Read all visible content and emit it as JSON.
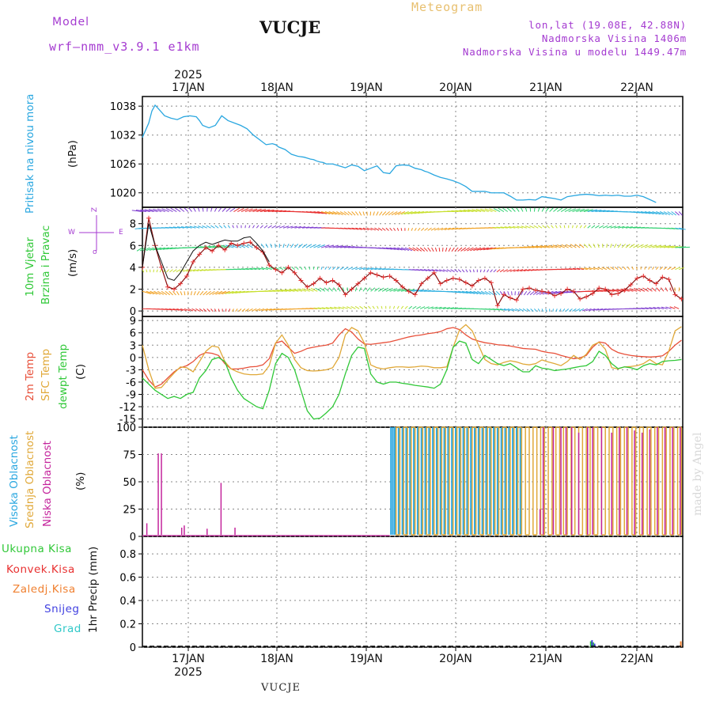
{
  "header": {
    "model_label": "Model",
    "model_value": "wrf—nmm_v3.9.1  e1km",
    "station": "VUCJE",
    "meteogram_label": "Meteogram",
    "lonlat": "lon,lat (19.08E, 42.88N)",
    "elevation": "Nadmorska Visina 1406m",
    "model_elevation": "Nadmorska Visina u modelu 1449.47m"
  },
  "footer_station": "VUCJE",
  "watermark": "made by Angel",
  "time_axis": {
    "year": "2025",
    "dates": [
      "17JAN",
      "18JAN",
      "19JAN",
      "20JAN",
      "21JAN",
      "22JAN"
    ]
  },
  "panels": {
    "pressure": {
      "title": "Pritisak na nivou mora",
      "unit": "(hPa)",
      "ticks": [
        "1038",
        "1032",
        "1026",
        "1020"
      ]
    },
    "wind": {
      "title_line1": "10m Vjetar",
      "title_line2": "Brzina i Pravac",
      "unit": "(m/s)",
      "ticks": [
        "8",
        "6",
        "4",
        "2",
        "0"
      ],
      "compass_n": "Z",
      "compass_w": "W",
      "compass_e": "E",
      "compass_s": "σ"
    },
    "temperature": {
      "label_2m": "2m Temp",
      "label_sfc": "SFC Temp",
      "label_dew": "dewpt Temp",
      "unit": "(C)",
      "ticks": [
        "9",
        "6",
        "3",
        "0",
        "-3",
        "-6",
        "-9",
        "-12",
        "-15"
      ]
    },
    "clouds": {
      "label_high": "Visoka Oblacnost",
      "label_mid": "Srednja Oblacnost",
      "label_low": "Niska Oblacnost",
      "unit": "(%)",
      "ticks": [
        "100",
        "75",
        "50",
        "25",
        "0"
      ]
    },
    "precip": {
      "legend": [
        "Ukupna Kisa",
        "Konvek.Kisa",
        "Zaledj.Kisa",
        "Snijeg",
        "Grad"
      ],
      "unit": "1hr Precip (mm)",
      "ticks": [
        "0.8",
        "0.6",
        "0.4",
        "0.2",
        "0"
      ]
    }
  },
  "colors": {
    "pressure": "#2aa7e0",
    "temp2m": "#e8503a",
    "sfc": "#e0a838",
    "dew": "#30c838",
    "cloud_high": "#2aa7e0",
    "cloud_mid": "#e0a838",
    "cloud_low": "#c4249c",
    "wind_speed": "#e83030",
    "label_purple": "#a43ad0",
    "ukupna": "#30c838",
    "konvek": "#e83030",
    "zaledj": "#f08030",
    "snijeg": "#4040e0",
    "grad": "#30c8c8"
  },
  "chart_data": [
    {
      "type": "line",
      "ylabel": "(hPa)",
      "ylim": [
        1017,
        1040
      ],
      "x_hours": [
        0,
        5,
        10,
        15,
        20,
        25,
        35,
        45,
        55,
        65,
        75,
        85,
        90,
        95,
        105,
        115,
        125,
        135,
        145,
        155,
        165,
        175,
        185,
        195,
        205,
        210,
        215,
        225,
        230,
        235,
        240,
        245,
        250,
        255,
        260,
        265,
        270,
        275,
        280,
        285,
        290,
        295,
        300,
        310,
        320,
        330,
        340,
        350,
        360,
        370,
        380,
        390,
        400,
        410,
        420,
        430,
        440,
        445,
        450,
        455,
        460,
        470,
        480,
        490,
        500,
        510,
        520,
        530,
        540,
        550,
        560,
        570,
        580,
        590,
        600,
        610,
        620,
        630,
        640,
        650,
        660,
        670,
        680,
        690,
        700,
        710,
        720,
        730,
        740,
        750,
        760,
        770,
        780,
        790,
        800,
        810,
        820,
        830,
        840,
        850
      ],
      "series": [
        {
          "values": [
            1031.5,
            1033,
            1034.5,
            1037,
            1038.2,
            1037.5,
            1036,
            1035.5,
            1035.2,
            1035.8,
            1036,
            1035.8,
            1035,
            1034,
            1033.5,
            1034,
            1036,
            1035,
            1034.5,
            1034,
            1033.3,
            1032,
            1031,
            1030,
            1030.2,
            1030,
            1029.5,
            1029,
            1028.5,
            1028,
            1027.8,
            1027.6,
            1027.5,
            1027.4,
            1027.2,
            1027,
            1026.9,
            1026.6,
            1026.4,
            1026.3,
            1026,
            1026,
            1026,
            1025.6,
            1025.2,
            1025.8,
            1025.5,
            1024.6,
            1025.1,
            1025.6,
            1024.2,
            1024,
            1025.6,
            1025.8,
            1025.7,
            1025.1,
            1024.8,
            1024.5,
            1024.3,
            1024,
            1023.7,
            1023.2,
            1022.9,
            1022.5,
            1022,
            1021.3,
            1020.3,
            1020.3,
            1020.3,
            1020,
            1020,
            1020,
            1019.3,
            1018.5,
            1018.5,
            1018.6,
            1018.5,
            1019.2,
            1019,
            1018.8,
            1018.5,
            1019.2,
            1019.4,
            1019.6,
            1019.7,
            1019.6,
            1019.4,
            1019.5,
            1019.4,
            1019.5,
            1019.3,
            1019.3,
            1019.5,
            1019.2,
            1018.6,
            1018
          ]
        }
      ]
    },
    {
      "type": "line",
      "ylabel": "(m/s)",
      "ylim": [
        -0.5,
        9.5
      ],
      "x_hours": [
        0,
        10,
        20,
        30,
        40,
        50,
        60,
        70,
        80,
        90,
        100,
        110,
        120,
        130,
        140,
        150,
        160,
        170,
        180,
        190,
        200,
        210,
        220,
        230,
        240,
        250,
        260,
        270,
        280,
        290,
        300,
        310,
        320,
        330,
        340,
        350,
        360,
        370,
        380,
        390,
        400,
        410,
        420,
        430,
        440,
        450,
        460,
        470,
        480,
        490,
        500,
        510,
        520,
        530,
        540,
        550,
        560,
        570,
        580,
        590,
        600,
        610,
        620,
        630,
        640,
        650,
        660,
        670,
        680,
        690,
        700,
        710,
        720,
        730,
        740,
        750,
        760,
        770,
        780,
        790,
        800,
        810,
        820,
        830,
        840,
        850
      ],
      "series": [
        {
          "values": [
            4,
            8.5,
            6,
            4,
            2.2,
            2,
            2.5,
            3.2,
            4.5,
            5.2,
            5.8,
            5.5,
            6,
            5.6,
            6.2,
            6,
            6.2,
            6.3,
            5.8,
            5.4,
            4.2,
            3.8,
            3.5,
            4,
            3.5,
            2.8,
            2.2,
            2.5,
            3,
            2.6,
            2.8,
            2.4,
            1.5,
            2,
            2.5,
            3,
            3.5,
            3.3,
            3.1,
            3.2,
            2.8,
            2.2,
            1.8,
            1.5,
            2.5,
            3,
            3.5,
            2.5,
            2.8,
            3,
            2.9,
            2.6,
            2.3,
            2.8,
            3,
            2.6,
            0.5,
            1.5,
            1.2,
            1,
            2,
            2.1,
            1.9,
            1.8,
            1.7,
            1.4,
            1.6,
            2,
            1.8,
            1.1,
            1.3,
            1.6,
            2.1,
            2,
            1.5,
            1.6,
            1.9,
            2.4,
            3,
            3.2,
            2.8,
            2.5,
            3.1,
            2.9,
            1.5,
            1.1
          ]
        },
        {
          "values": [
            4,
            8,
            6,
            4.5,
            3,
            2.8,
            3.5,
            4.5,
            5.5,
            6,
            6.3,
            6.1,
            6.3,
            6.5,
            6.4,
            6.4,
            6.7,
            6.8,
            6.2,
            5.5,
            4.5
          ]
        }
      ]
    },
    {
      "type": "line",
      "ylabel": "(C)",
      "ylim": [
        -17,
        10
      ],
      "x_hours": [
        0,
        10,
        20,
        30,
        40,
        50,
        60,
        70,
        80,
        90,
        100,
        110,
        120,
        130,
        140,
        150,
        160,
        170,
        180,
        190,
        200,
        210,
        220,
        230,
        240,
        250,
        260,
        270,
        280,
        290,
        300,
        310,
        320,
        330,
        340,
        350,
        360,
        370,
        380,
        390,
        400,
        410,
        420,
        430,
        440,
        450,
        460,
        470,
        480,
        490,
        500,
        510,
        520,
        530,
        540,
        550,
        560,
        570,
        580,
        590,
        600,
        610,
        620,
        630,
        640,
        650,
        660,
        670,
        680,
        690,
        700,
        710,
        720,
        730,
        740,
        750,
        760,
        770,
        780,
        790,
        800,
        810,
        820,
        830,
        840,
        850
      ],
      "series": [
        {
          "name": "2m Temp",
          "values": [
            -3,
            -5.5,
            -7.2,
            -6.5,
            -5,
            -3.5,
            -2.5,
            -2,
            -1,
            0.5,
            1.2,
            1,
            0.5,
            -1.5,
            -2.8,
            -2.8,
            -2.6,
            -2.3,
            -2.2,
            -1.8,
            -0.3,
            3.5,
            4,
            2.5,
            1,
            1.5,
            2.2,
            2.5,
            2.8,
            3,
            3.5,
            5.5,
            7,
            6.2,
            4.5,
            3.3,
            3.2,
            3.4,
            3.6,
            3.8,
            4.2,
            4.6,
            5,
            5.3,
            5.5,
            5.8,
            6,
            6.3,
            7,
            7.3,
            6.8,
            5.5,
            4.5,
            4,
            3.6,
            3.4,
            3.1,
            3,
            2.8,
            2.5,
            2.2,
            2.1,
            2,
            1.5,
            1.2,
            1,
            0.5,
            0.1,
            -0.3,
            -0.1,
            0.5,
            2.5,
            3.8,
            3.5,
            2,
            1.2,
            0.8,
            0.5,
            0.3,
            0.2,
            0.1,
            0.2,
            0.4,
            1.5,
            3,
            4.2
          ]
        },
        {
          "name": "SFC Temp",
          "values": [
            3,
            -3,
            -7.5,
            -7.3,
            -5.5,
            -3.8,
            -2.3,
            -2.5,
            -3.5,
            -1,
            1.5,
            2.8,
            2.5,
            -1,
            -2.8,
            -3.5,
            -4,
            -4.2,
            -4.2,
            -4,
            -2,
            3.5,
            5.5,
            3,
            -0.5,
            -2.5,
            -3.2,
            -3.3,
            -3.2,
            -3,
            -2.5,
            0,
            5.5,
            7.3,
            6.5,
            3.5,
            -1.8,
            -2.5,
            -2.8,
            -2.5,
            -2.3,
            -2.3,
            -2.4,
            -2.3,
            -2.1,
            -2.2,
            -2.5,
            -2.5,
            -2.3,
            2.5,
            6.7,
            8,
            6.5,
            3,
            -0.5,
            -1.5,
            -1.8,
            -1.2,
            -0.8,
            -1.1,
            -1.6,
            -1.8,
            -1.5,
            -0.6,
            -1.1,
            -1.5,
            -2,
            -1,
            0.5,
            -0.5,
            0.8,
            3,
            3.7,
            2,
            -2.5,
            -2.8,
            -2.3,
            -2.2,
            -2,
            -1.5,
            -0.5,
            -1.5,
            -1.8,
            1.5,
            6.5,
            7.5
          ]
        },
        {
          "name": "dewpt Temp",
          "values": [
            -5,
            -6.5,
            -8,
            -9,
            -10,
            -9.5,
            -10,
            -9,
            -8.5,
            -5,
            -3.2,
            -0.5,
            0,
            -1,
            -5,
            -8,
            -10,
            -11,
            -12,
            -12.5,
            -8,
            -1.5,
            1,
            0,
            -3,
            -8,
            -13,
            -15,
            -14.8,
            -13.5,
            -12,
            -9,
            -4,
            0.5,
            2.5,
            2.2,
            -4,
            -6,
            -6.5,
            -6,
            -6,
            -6.3,
            -6.5,
            -6.8,
            -7,
            -7.2,
            -7.5,
            -6.5,
            -3,
            2.5,
            4,
            3.5,
            -0.5,
            -1.5,
            0.5,
            -0.5,
            -1.5,
            -2,
            -1.5,
            -2.5,
            -3.5,
            -3.5,
            -2,
            -2.6,
            -2.8,
            -3.2,
            -3,
            -2.8,
            -2.5,
            -2.2,
            -2,
            -1,
            1.5,
            0.5,
            -1.5,
            -2.7,
            -2.3,
            -2.5,
            -3,
            -2,
            -1.5,
            -1.8,
            -1,
            -0.8,
            -0.7,
            -0.5
          ]
        }
      ]
    },
    {
      "type": "bar",
      "ylabel": "(%)",
      "ylim": [
        0,
        100
      ],
      "series": [
        {
          "name": "Niska Oblacnost",
          "x_hours": [
            7,
            25,
            30,
            62,
            66,
            102,
            124,
            146,
            627,
            632,
            648,
            660,
            668,
            677,
            688,
            702,
            710,
            724,
            740,
            752,
            764,
            776,
            788,
            800,
            812,
            824,
            836,
            848
          ],
          "values": [
            12,
            76,
            76,
            8,
            10,
            7,
            49,
            8,
            25,
            100,
            100,
            100,
            100,
            100,
            95,
            100,
            100,
            100,
            95,
            100,
            100,
            97,
            95,
            98,
            100,
            100,
            100,
            100
          ]
        },
        {
          "name": "Srednja Oblacnost",
          "x_hours": [
            400,
            412,
            424,
            436,
            448,
            460,
            472,
            484,
            496,
            508,
            520,
            532,
            544,
            556,
            568,
            580,
            592,
            604,
            616,
            628,
            640,
            652,
            664,
            676,
            688,
            700,
            712,
            724,
            736,
            748,
            760,
            772,
            784,
            796,
            808,
            820,
            832,
            844
          ],
          "values": [
            100,
            100,
            100,
            100,
            100,
            100,
            100,
            100,
            100,
            100,
            100,
            100,
            100,
            100,
            100,
            100,
            100,
            100,
            100,
            100,
            100,
            100,
            100,
            100,
            100,
            100,
            100,
            100,
            100,
            100,
            100,
            100,
            100,
            100,
            100,
            100,
            100,
            100
          ]
        },
        {
          "name": "Visoka Oblacnost",
          "x_hours": [
            392,
            395,
            398,
            404,
            410,
            416,
            422,
            428,
            434,
            440,
            446,
            452,
            458,
            464,
            470,
            476,
            482,
            488,
            494,
            500,
            506,
            512,
            518,
            524,
            530,
            536,
            542,
            548,
            554,
            560,
            566,
            572,
            578,
            584,
            590,
            596
          ],
          "values": [
            100,
            100,
            100,
            100,
            100,
            100,
            100,
            100,
            100,
            100,
            100,
            100,
            100,
            100,
            100,
            100,
            100,
            100,
            100,
            100,
            100,
            100,
            100,
            100,
            100,
            100,
            100,
            100,
            100,
            100,
            100,
            100,
            100,
            100,
            100,
            100
          ]
        }
      ]
    },
    {
      "type": "bar",
      "ylabel": "1hr Precip (mm)",
      "ylim": [
        0,
        0.95
      ],
      "series": [
        {
          "name": "Ukupna Kisa",
          "x_hours": [
            707,
            711
          ],
          "values": [
            0.05,
            0.04
          ]
        },
        {
          "name": "Snijeg",
          "x_hours": [
            709,
            713
          ],
          "values": [
            0.06,
            0.03
          ]
        },
        {
          "name": "Zaledj.Kisa",
          "x_hours": [
            849
          ],
          "values": [
            0.05
          ]
        }
      ]
    }
  ]
}
